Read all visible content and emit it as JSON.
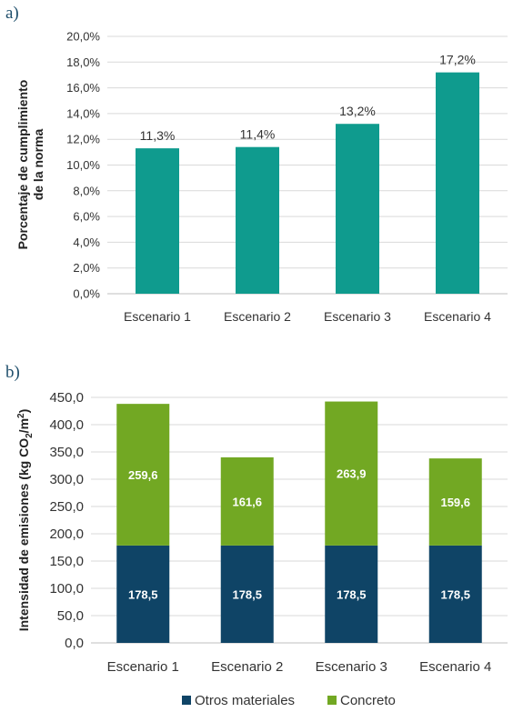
{
  "panels": {
    "a": {
      "label": "a)"
    },
    "b": {
      "label": "b)"
    }
  },
  "chart_data": [
    {
      "type": "bar",
      "panel": "a)",
      "categories": [
        "Escenario 1",
        "Escenario 2",
        "Escenario 3",
        "Escenario 4"
      ],
      "values": [
        11.3,
        11.4,
        13.2,
        17.2
      ],
      "data_labels": [
        "11,3%",
        "11,4%",
        "13,2%",
        "17,2%"
      ],
      "ylabel_lines": [
        "Porcentaje de cumplimiento",
        "de la norma"
      ],
      "ylim": [
        0,
        20
      ],
      "yticks": [
        0,
        2,
        4,
        6,
        8,
        10,
        12,
        14,
        16,
        18,
        20
      ],
      "ytick_labels": [
        "0,0%",
        "2,0%",
        "4,0%",
        "6,0%",
        "8,0%",
        "10,0%",
        "12,0%",
        "14,0%",
        "16,0%",
        "18,0%",
        "20,0%"
      ],
      "grid": true,
      "color": "#0f9b8e"
    },
    {
      "type": "bar",
      "stacked": true,
      "panel": "b)",
      "categories": [
        "Escenario 1",
        "Escenario 2",
        "Escenario 3",
        "Escenario 4"
      ],
      "series": [
        {
          "name": "Otros materiales",
          "values": [
            178.5,
            178.5,
            178.5,
            178.5
          ],
          "labels": [
            "178,5",
            "178,5",
            "178,5",
            "178,5"
          ],
          "color": "#0f4466"
        },
        {
          "name": "Concreto",
          "values": [
            259.6,
            161.6,
            263.9,
            159.6
          ],
          "labels": [
            "259,6",
            "161,6",
            "263,9",
            "159,6"
          ],
          "color": "#72a823"
        }
      ],
      "ylabel": {
        "main": "Intensidad de emisiones (kg CO",
        "sub": "2",
        "tail": "/m",
        "sup": "2",
        "end": ")"
      },
      "ylim": [
        0,
        450
      ],
      "yticks": [
        0,
        50,
        100,
        150,
        200,
        250,
        300,
        350,
        400,
        450
      ],
      "ytick_labels": [
        "0,0",
        "50,0",
        "100,0",
        "150,0",
        "200,0",
        "250,0",
        "300,0",
        "350,0",
        "400,0",
        "450,0"
      ],
      "grid": true,
      "legend_position": "bottom"
    }
  ]
}
